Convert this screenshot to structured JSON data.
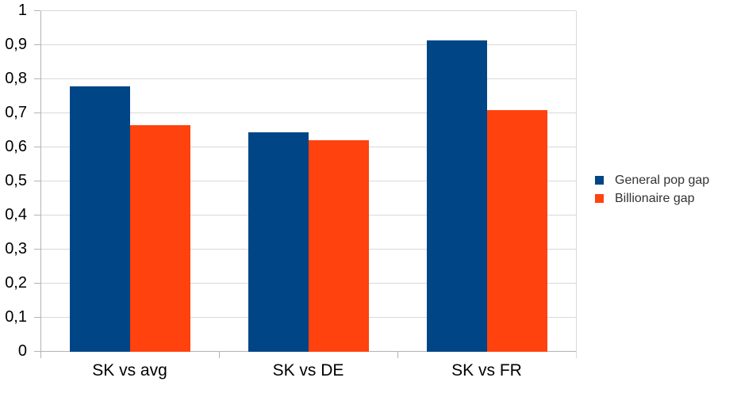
{
  "chart_data": {
    "type": "bar",
    "title": "",
    "xlabel": "",
    "ylabel": "",
    "categories": [
      "SK vs avg",
      "SK vs DE",
      "SK vs FR"
    ],
    "series": [
      {
        "name": "General pop gap",
        "color": "#004586",
        "values": [
          0.78,
          0.645,
          0.915
        ]
      },
      {
        "name": "Billionaire gap",
        "color": "#FF420E",
        "values": [
          0.665,
          0.62,
          0.71
        ]
      }
    ],
    "ylim": [
      0,
      1
    ],
    "ytick_step": 0.1,
    "ytick_labels": [
      "0",
      "0,1",
      "0,2",
      "0,3",
      "0,4",
      "0,5",
      "0,6",
      "0,7",
      "0,8",
      "0,9",
      "1"
    ],
    "grid": "horizontal-only",
    "legend_position": "right",
    "colors": {
      "background": "#ffffff",
      "gridline": "#d9d9d9",
      "axis": "#b3b3b3",
      "tick_label": "#000000",
      "legend_text": "#333333"
    }
  }
}
